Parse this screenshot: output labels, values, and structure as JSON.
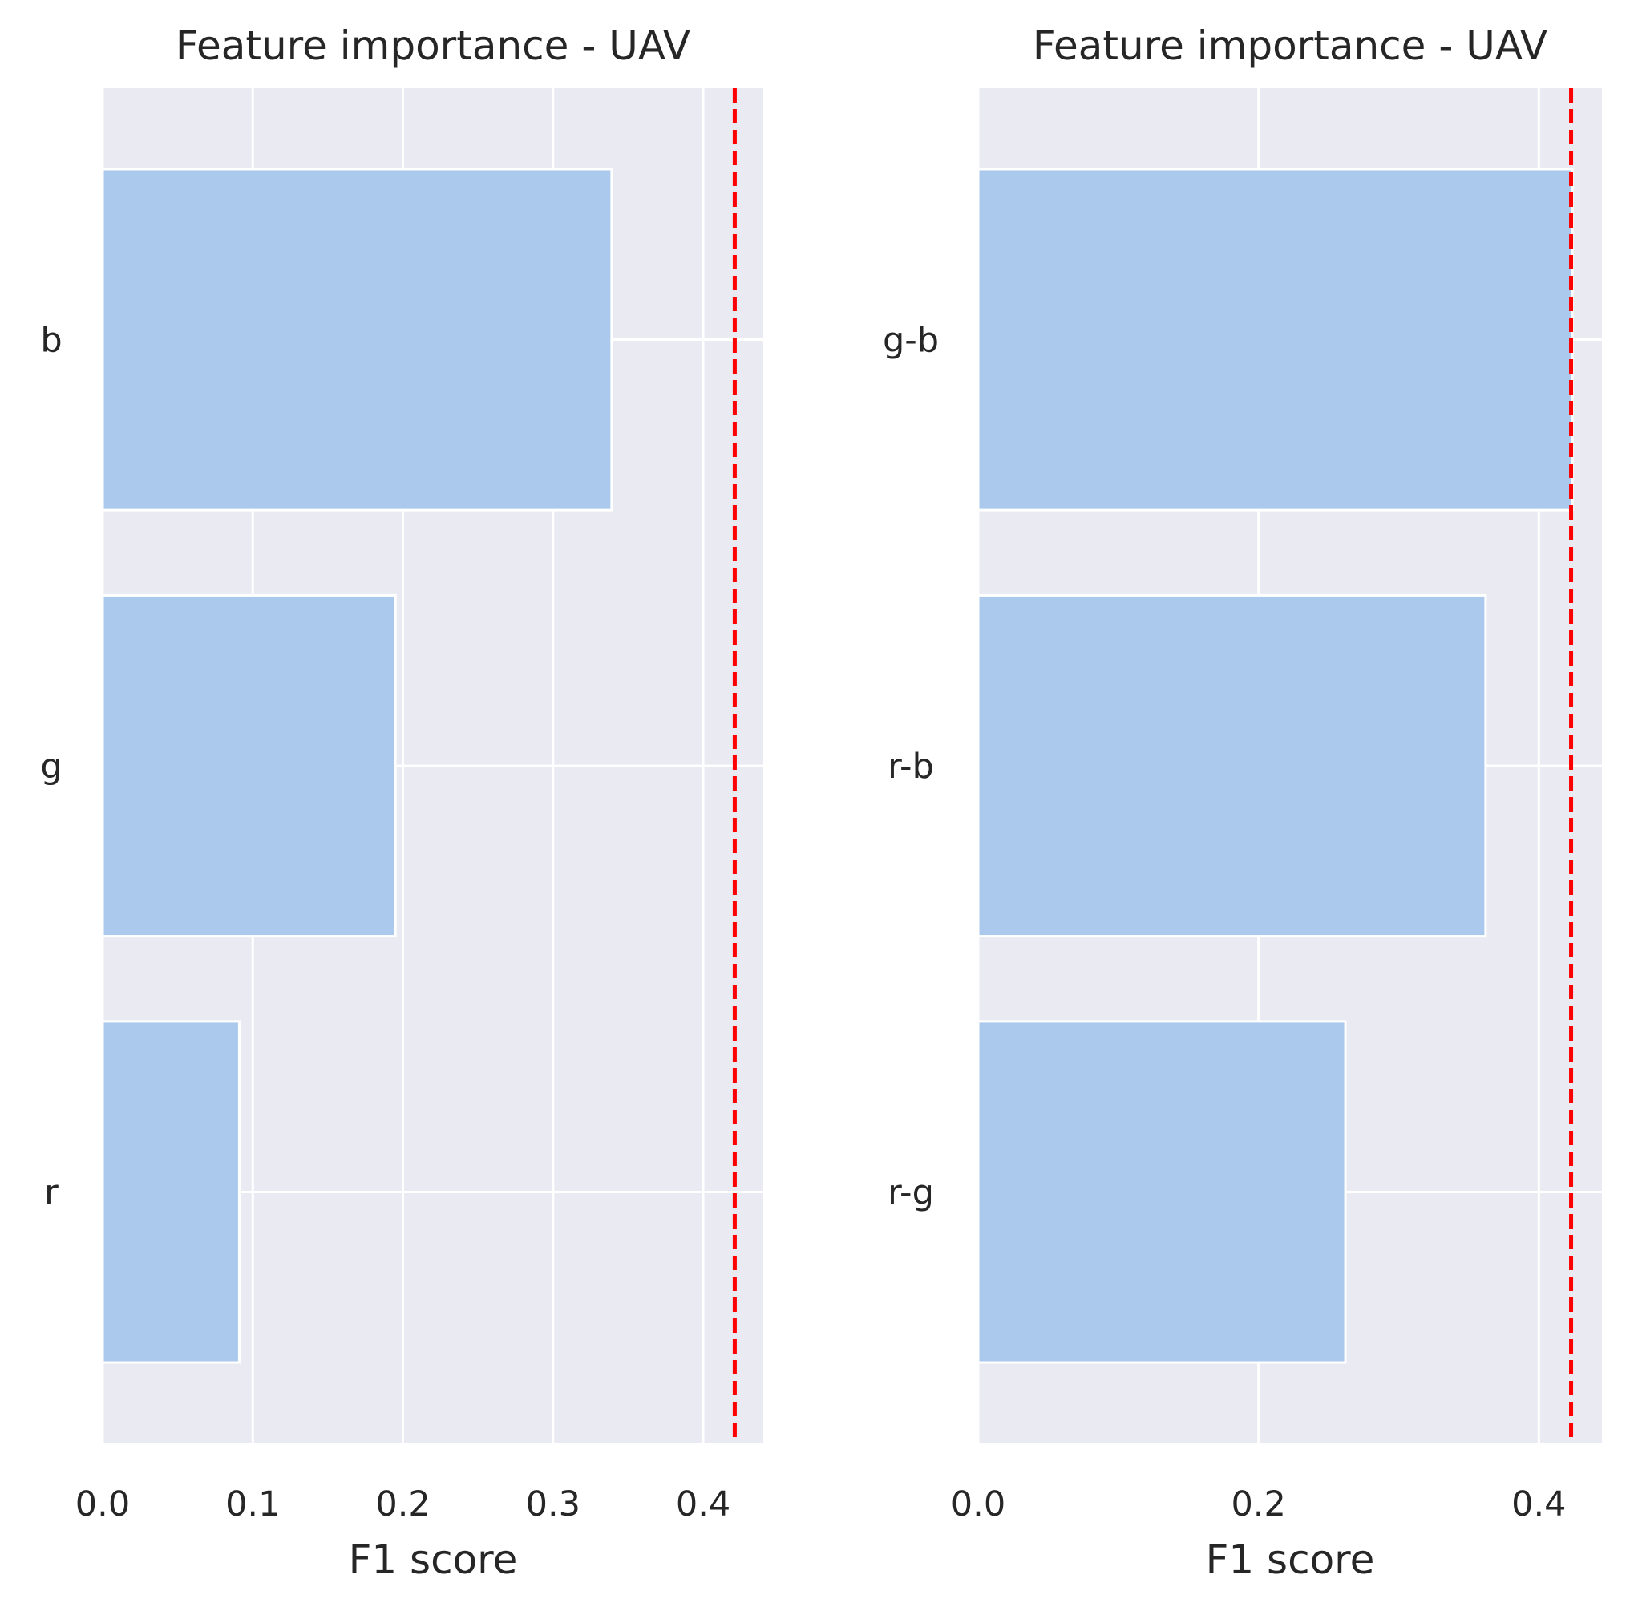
{
  "chart_data": [
    {
      "type": "bar",
      "orientation": "horizontal",
      "title": "Feature importance - UAV",
      "xlabel": "F1 score",
      "ylabel": "",
      "categories": [
        "b",
        "g",
        "r"
      ],
      "values": [
        0.339,
        0.195,
        0.091
      ],
      "xlim": [
        0.0,
        0.44
      ],
      "xticks": [
        "0.0",
        "0.1",
        "0.2",
        "0.3",
        "0.4"
      ],
      "xtick_values": [
        0.0,
        0.1,
        0.2,
        0.3,
        0.4
      ],
      "reference_line": {
        "x": 0.421,
        "style": "dashed",
        "color": "#ff0000"
      },
      "grid": true,
      "bar_color": "#abc9ec",
      "background_color": "#eaeaf2"
    },
    {
      "type": "bar",
      "orientation": "horizontal",
      "title": "Feature importance - UAV",
      "xlabel": "F1 score",
      "ylabel": "",
      "categories": [
        "g-b",
        "r-b",
        "r-g"
      ],
      "values": [
        0.424,
        0.362,
        0.262
      ],
      "xlim": [
        0.0,
        0.445
      ],
      "xticks": [
        "0.0",
        "0.2",
        "0.4"
      ],
      "xtick_values": [
        0.0,
        0.2,
        0.4
      ],
      "reference_line": {
        "x": 0.423,
        "style": "dashed",
        "color": "#ff0000"
      },
      "grid": true,
      "bar_color": "#abc9ec",
      "background_color": "#eaeaf2"
    }
  ]
}
